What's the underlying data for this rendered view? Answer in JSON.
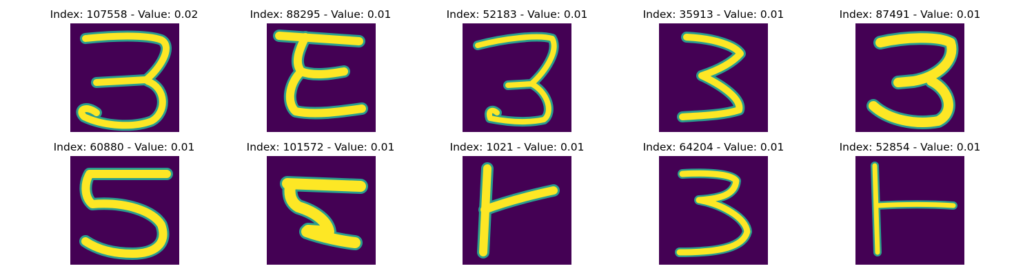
{
  "colors": {
    "background": "#440154",
    "stroke_core": "#fde725",
    "stroke_edge": "#2a9d8f"
  },
  "panels": [
    {
      "title": "Index: 107558 - Value: 0.02",
      "image": "digit-3-image"
    },
    {
      "title": "Index: 88295 - Value: 0.01",
      "image": "digit-3-image"
    },
    {
      "title": "Index: 52183 - Value: 0.01",
      "image": "digit-3-image"
    },
    {
      "title": "Index: 35913 - Value: 0.01",
      "image": "digit-3-image"
    },
    {
      "title": "Index: 87491 - Value: 0.01",
      "image": "digit-3-image"
    },
    {
      "title": "Index: 60880 - Value: 0.01",
      "image": "digit-5-image"
    },
    {
      "title": "Index: 101572 - Value: 0.01",
      "image": "digit-5-image"
    },
    {
      "title": "Index: 1021 - Value: 0.01",
      "image": "digit-t-image"
    },
    {
      "title": "Index: 64204 - Value: 0.01",
      "image": "digit-3-image"
    },
    {
      "title": "Index: 52854 - Value: 0.01",
      "image": "digit-t-image"
    }
  ]
}
